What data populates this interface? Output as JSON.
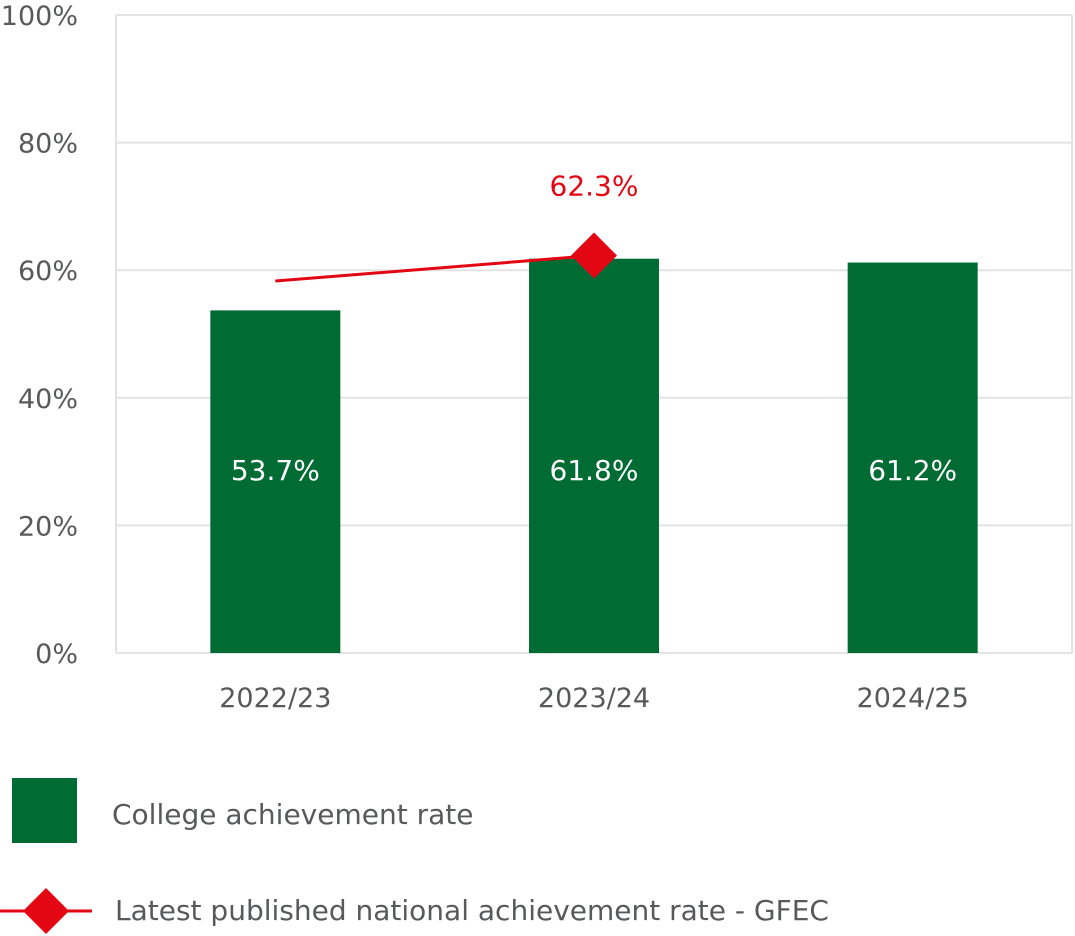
{
  "chart_data": {
    "type": "bar",
    "categories": [
      "2022/23",
      "2023/24",
      "2024/25"
    ],
    "ylim": [
      0,
      100
    ],
    "yticks": [
      "0%",
      "20%",
      "40%",
      "60%",
      "80%",
      "100%"
    ],
    "ytick_values": [
      0,
      20,
      40,
      60,
      80,
      100
    ],
    "grid": true,
    "series": [
      {
        "name": "College achievement rate",
        "type": "bar",
        "color": "#006b33",
        "values": [
          53.7,
          61.8,
          61.2
        ],
        "labels": [
          "53.7%",
          "61.8%",
          "61.2%"
        ]
      },
      {
        "name": "Latest published national achievement rate - GFEC",
        "type": "line",
        "color": "#e30613",
        "values": [
          58.3,
          62.3,
          null
        ],
        "labels": [
          "",
          "62.3%",
          ""
        ]
      }
    ],
    "legend_position": "bottom"
  }
}
